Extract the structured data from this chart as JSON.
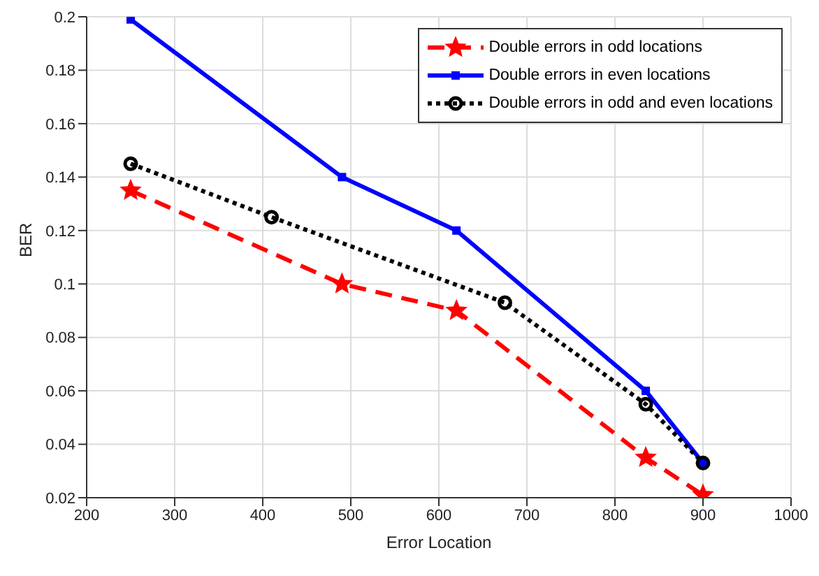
{
  "chart_data": {
    "type": "line",
    "xlabel": "Error Location",
    "ylabel": "BER",
    "xlim": [
      200,
      1000
    ],
    "xticks": [
      200,
      300,
      400,
      500,
      600,
      700,
      800,
      900,
      1000
    ],
    "ylim": [
      0.02,
      0.2
    ],
    "yticks": [
      0.02,
      0.04,
      0.06,
      0.08,
      0.1,
      0.12,
      0.14,
      0.16,
      0.18,
      0.2
    ],
    "grid": true,
    "legend": "top right",
    "series": [
      {
        "name": "Double errors in odd locations",
        "color": "#ff0000",
        "marker": "star",
        "line_style": "dashed",
        "x": [
          250,
          490,
          620,
          835,
          900
        ],
        "values": [
          0.135,
          0.1,
          0.09,
          0.035,
          0.021
        ]
      },
      {
        "name": "Double errors in even locations",
        "color": "#0000ff",
        "marker": "square",
        "line_style": "solid",
        "x": [
          250,
          490,
          620,
          835,
          900
        ],
        "values": [
          0.199,
          0.14,
          0.12,
          0.06,
          0.033
        ]
      },
      {
        "name": "Double errors in odd and even locations",
        "color": "#000000",
        "marker": "circle",
        "line_style": "dotted",
        "x": [
          250,
          410,
          675,
          835,
          900
        ],
        "values": [
          0.145,
          0.125,
          0.093,
          0.055,
          0.033
        ]
      }
    ]
  }
}
